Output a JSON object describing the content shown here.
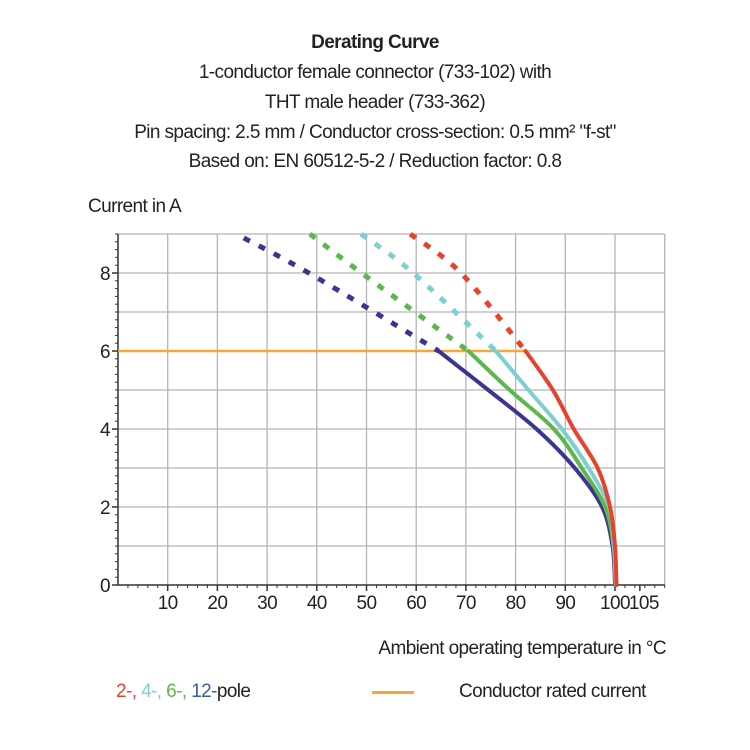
{
  "chart_data": {
    "type": "line",
    "title": "Derating Curve",
    "subtitle": [
      "1-conductor female connector (733-102) with",
      "THT male header (733-362)",
      "Pin spacing: 2.5 mm / Conductor cross-section: 0.5 mm² \"f-st\"",
      "Based on: EN 60512-5-2 / Reduction factor: 0.8"
    ],
    "xlabel": "Ambient operating temperature in °C",
    "ylabel": "Current in A",
    "xlim": [
      0,
      110
    ],
    "ylim": [
      0,
      9
    ],
    "xticks": [
      10,
      20,
      30,
      40,
      50,
      60,
      70,
      80,
      90,
      100,
      105
    ],
    "yticks": [
      0,
      2,
      4,
      6,
      8
    ],
    "grid": true,
    "legend_placement": "bottom",
    "rated_current": {
      "name": "Conductor rated current",
      "value": 6,
      "color": "#f7a833"
    },
    "legend_pole_label": "pole",
    "series": [
      {
        "name": "2-",
        "legend_text": "2-,",
        "color": "#e8412c",
        "dashed": [
          [
            58.8,
            9
          ],
          [
            69,
            8
          ],
          [
            82,
            6
          ]
        ],
        "solid": [
          [
            82,
            6
          ],
          [
            87.5,
            5
          ],
          [
            91.7,
            4
          ],
          [
            96.5,
            3
          ],
          [
            99,
            2
          ],
          [
            100,
            1
          ],
          [
            100.3,
            0
          ]
        ]
      },
      {
        "name": "4-",
        "legend_text": "4-,",
        "color": "#7ecfd0",
        "dashed": [
          [
            48.9,
            9
          ],
          [
            59.4,
            8
          ],
          [
            76,
            6
          ]
        ],
        "solid": [
          [
            76,
            6
          ],
          [
            82.6,
            5
          ],
          [
            89.3,
            4
          ],
          [
            94.7,
            3
          ],
          [
            98.8,
            2
          ],
          [
            99.8,
            1
          ],
          [
            100.2,
            0
          ]
        ]
      },
      {
        "name": "6-",
        "legend_text": "6-,",
        "color": "#5cb84a",
        "dashed": [
          [
            38.6,
            9
          ],
          [
            49,
            8
          ],
          [
            70.5,
            6
          ]
        ],
        "solid": [
          [
            70.5,
            6
          ],
          [
            78.8,
            5
          ],
          [
            87.7,
            4
          ],
          [
            93.3,
            3
          ],
          [
            98,
            2
          ],
          [
            99.7,
            1
          ],
          [
            100.1,
            0
          ]
        ]
      },
      {
        "name": "12-",
        "legend_text": "12-",
        "color": "#3a3593",
        "legend_color": "#3b5ba8",
        "dashed": [
          [
            25.3,
            8.9
          ],
          [
            38.4,
            8
          ],
          [
            64.5,
            6
          ]
        ],
        "solid": [
          [
            64.5,
            6
          ],
          [
            74.5,
            5
          ],
          [
            84.2,
            4
          ],
          [
            91.9,
            3
          ],
          [
            97.4,
            2
          ],
          [
            99.5,
            1
          ],
          [
            100,
            0
          ]
        ]
      }
    ]
  }
}
